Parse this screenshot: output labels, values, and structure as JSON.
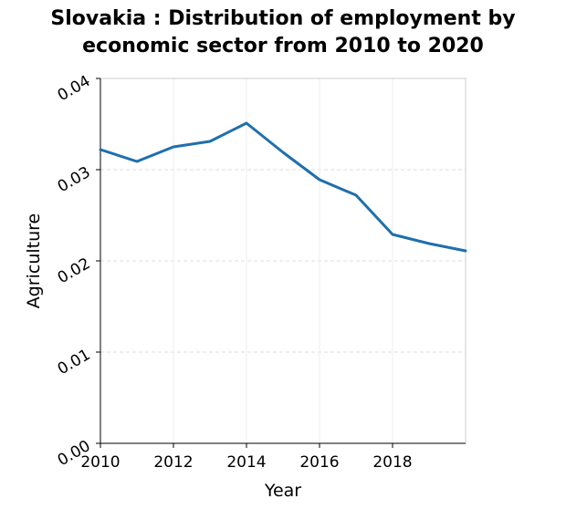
{
  "chart_data": {
    "type": "line",
    "title_line1": "Slovakia : Distribution of employment by",
    "title_line2": "economic sector from 2010 to 2020",
    "xlabel": "Year",
    "ylabel": "Agriculture",
    "xlim": [
      2010,
      2020
    ],
    "ylim": [
      0,
      0.04
    ],
    "x_ticks": [
      {
        "value": 2010,
        "label": "2010"
      },
      {
        "value": 2012,
        "label": "2012"
      },
      {
        "value": 2014,
        "label": "2014"
      },
      {
        "value": 2016,
        "label": "2016"
      },
      {
        "value": 2018,
        "label": "2018"
      }
    ],
    "y_ticks": [
      {
        "value": 0,
        "label": "0.00"
      },
      {
        "value": 0.01,
        "label": "0.01"
      },
      {
        "value": 0.02,
        "label": "0.02"
      },
      {
        "value": 0.03,
        "label": "0.03"
      },
      {
        "value": 0.04,
        "label": "0.04"
      }
    ],
    "grid": true,
    "series": [
      {
        "color": "#1f6fad",
        "points": [
          {
            "x": 2010,
            "y": 0.0322
          },
          {
            "x": 2011,
            "y": 0.0309
          },
          {
            "x": 2012,
            "y": 0.0325
          },
          {
            "x": 2013,
            "y": 0.0331
          },
          {
            "x": 2014,
            "y": 0.0351
          },
          {
            "x": 2015,
            "y": 0.0319
          },
          {
            "x": 2016,
            "y": 0.0289
          },
          {
            "x": 2017,
            "y": 0.0272
          },
          {
            "x": 2018,
            "y": 0.0229
          },
          {
            "x": 2019,
            "y": 0.0219
          },
          {
            "x": 2020,
            "y": 0.0211
          }
        ]
      }
    ]
  }
}
